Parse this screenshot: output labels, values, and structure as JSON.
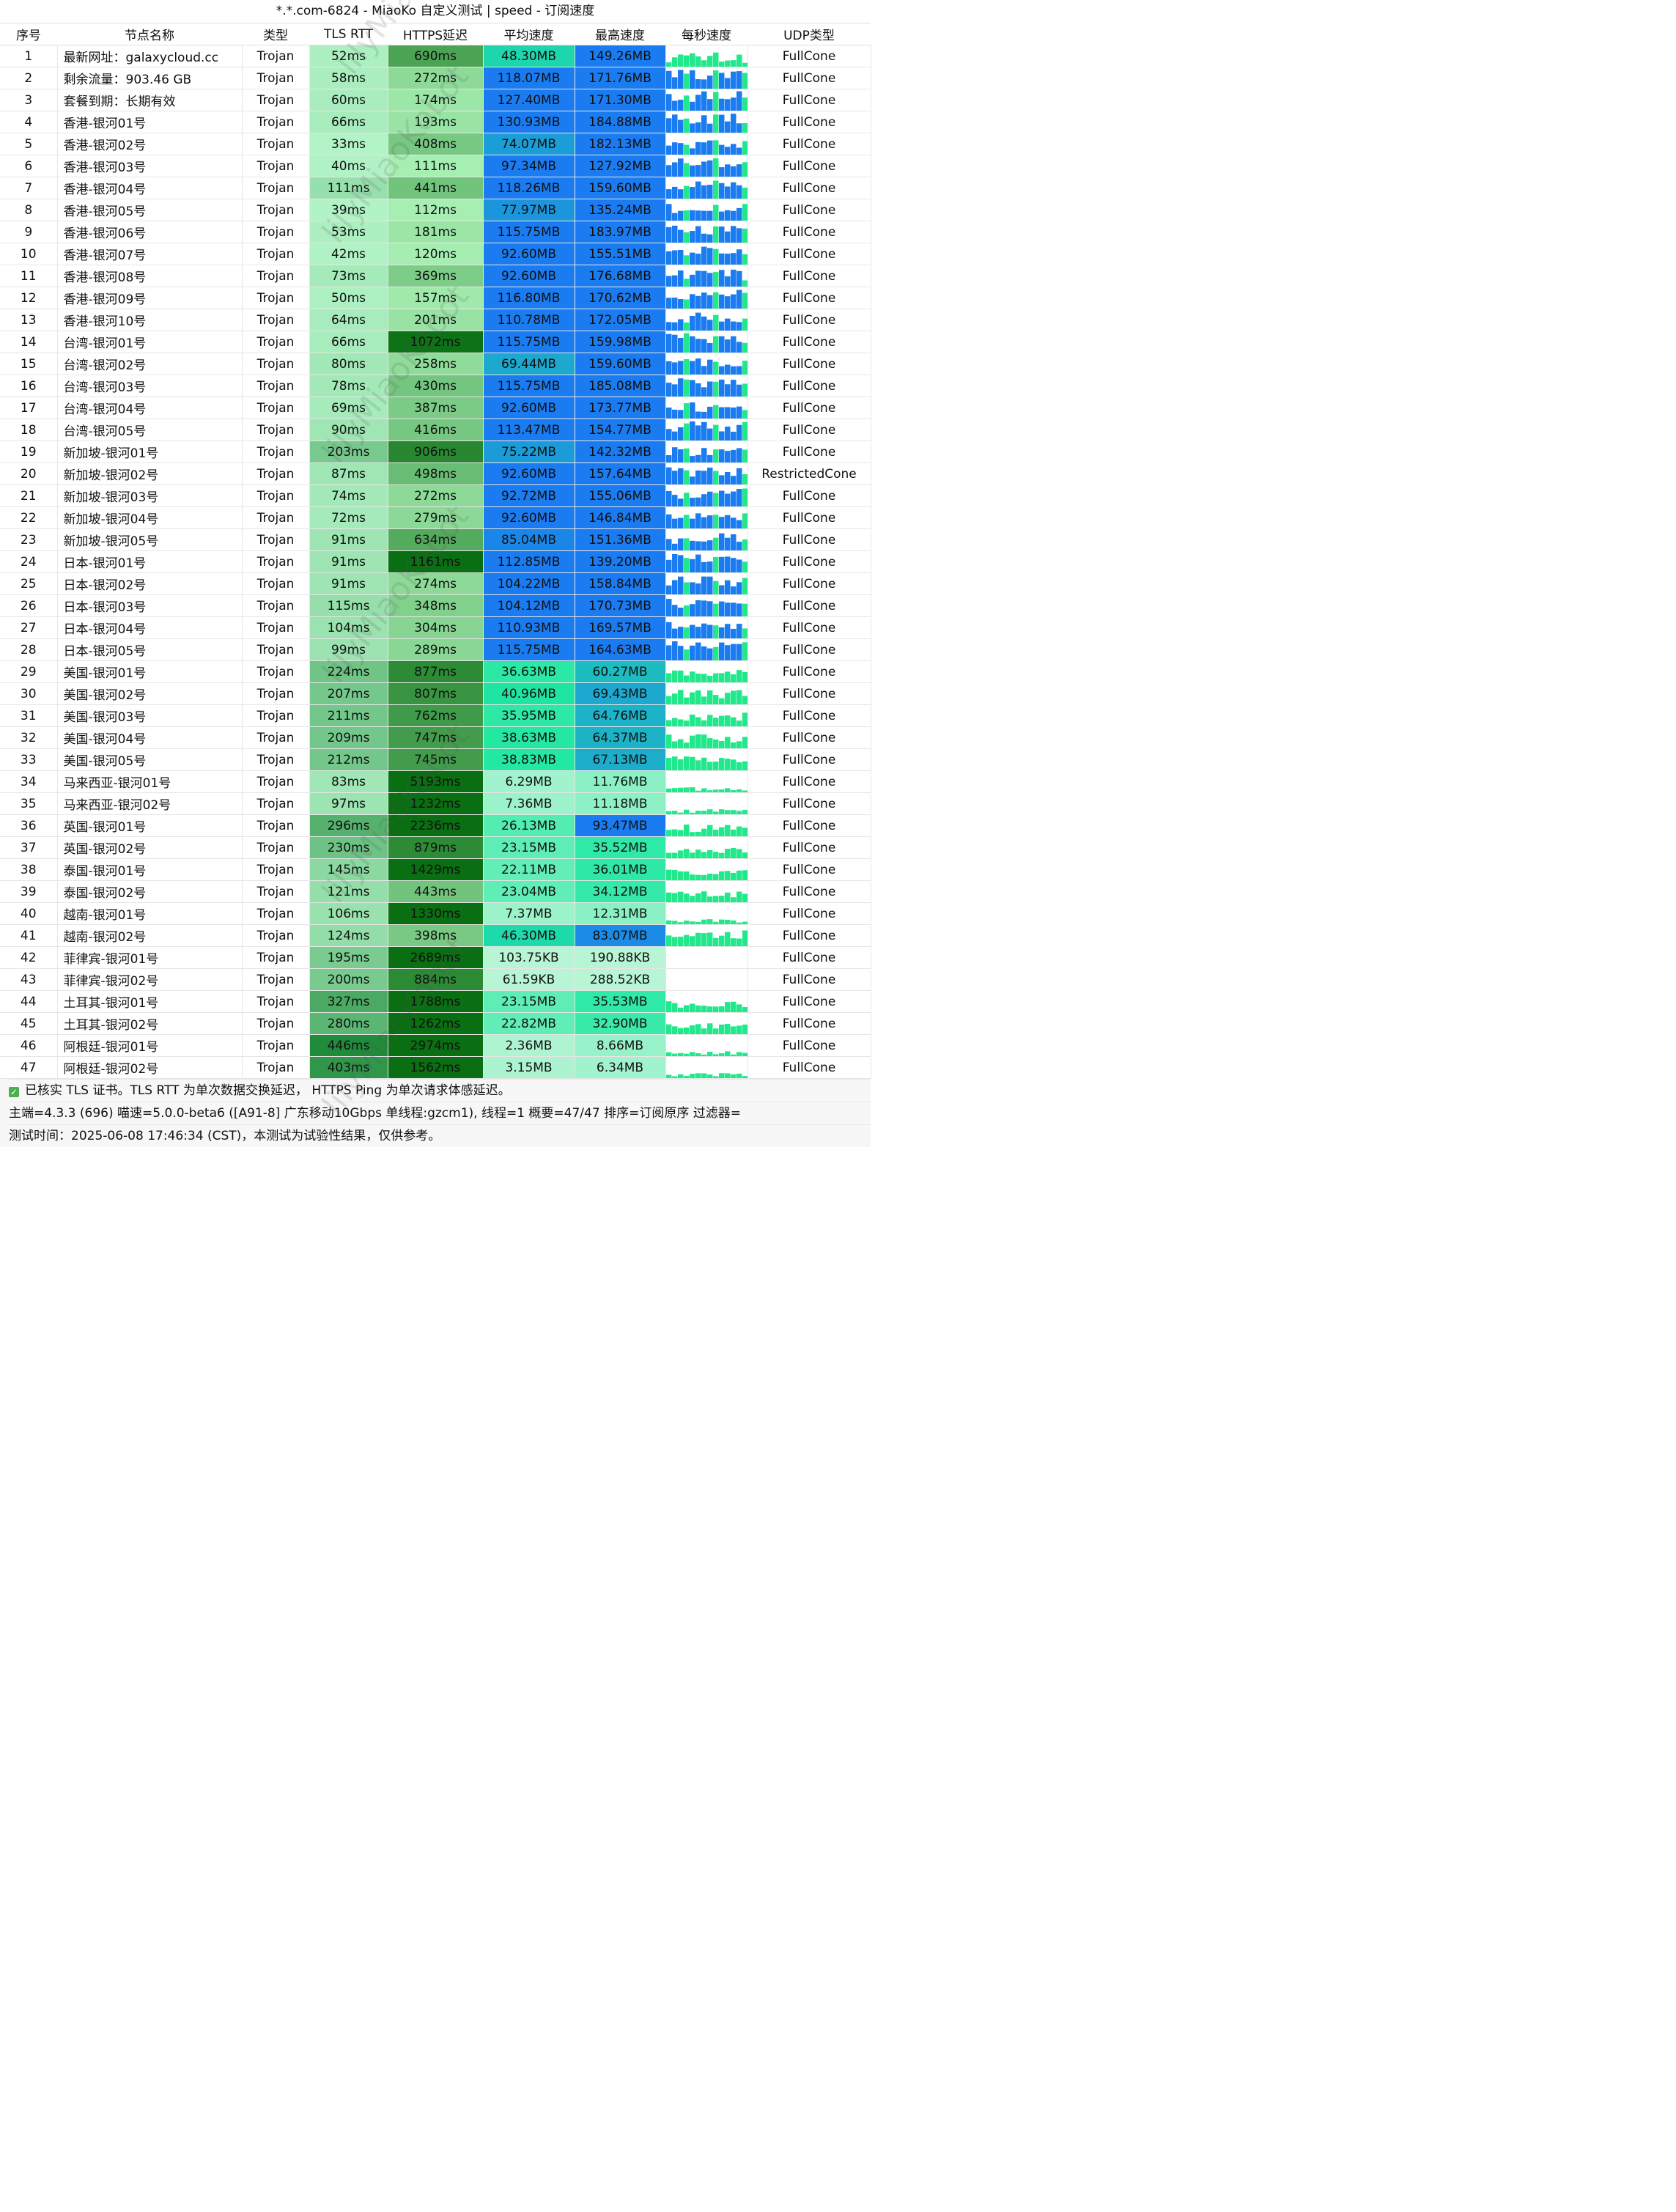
{
  "window": {
    "title": "*.*.com-6824 - MiaoKo 自定义测试 | speed - 订阅速度"
  },
  "table": {
    "headers": [
      "序号",
      "节点名称",
      "类型",
      "TLS RTT",
      "HTTPS延迟",
      "平均速度",
      "最高速度",
      "每秒速度",
      "UDP类型"
    ],
    "rows": [
      {
        "idx": "1",
        "name": "最新网址：galaxycloud.cc",
        "type": "Trojan",
        "tls": "52ms",
        "https": "690ms",
        "avg": "48.30MB",
        "max": "149.26MB",
        "udp": "FullCone"
      },
      {
        "idx": "2",
        "name": "剩余流量：903.46 GB",
        "type": "Trojan",
        "tls": "58ms",
        "https": "272ms",
        "avg": "118.07MB",
        "max": "171.76MB",
        "udp": "FullCone"
      },
      {
        "idx": "3",
        "name": "套餐到期：长期有效",
        "type": "Trojan",
        "tls": "60ms",
        "https": "174ms",
        "avg": "127.40MB",
        "max": "171.30MB",
        "udp": "FullCone"
      },
      {
        "idx": "4",
        "name": "香港-银河01号",
        "type": "Trojan",
        "tls": "66ms",
        "https": "193ms",
        "avg": "130.93MB",
        "max": "184.88MB",
        "udp": "FullCone"
      },
      {
        "idx": "5",
        "name": "香港-银河02号",
        "type": "Trojan",
        "tls": "33ms",
        "https": "408ms",
        "avg": "74.07MB",
        "max": "182.13MB",
        "udp": "FullCone"
      },
      {
        "idx": "6",
        "name": "香港-银河03号",
        "type": "Trojan",
        "tls": "40ms",
        "https": "111ms",
        "avg": "97.34MB",
        "max": "127.92MB",
        "udp": "FullCone"
      },
      {
        "idx": "7",
        "name": "香港-银河04号",
        "type": "Trojan",
        "tls": "111ms",
        "https": "441ms",
        "avg": "118.26MB",
        "max": "159.60MB",
        "udp": "FullCone"
      },
      {
        "idx": "8",
        "name": "香港-银河05号",
        "type": "Trojan",
        "tls": "39ms",
        "https": "112ms",
        "avg": "77.97MB",
        "max": "135.24MB",
        "udp": "FullCone"
      },
      {
        "idx": "9",
        "name": "香港-银河06号",
        "type": "Trojan",
        "tls": "53ms",
        "https": "181ms",
        "avg": "115.75MB",
        "max": "183.97MB",
        "udp": "FullCone"
      },
      {
        "idx": "10",
        "name": "香港-银河07号",
        "type": "Trojan",
        "tls": "42ms",
        "https": "120ms",
        "avg": "92.60MB",
        "max": "155.51MB",
        "udp": "FullCone"
      },
      {
        "idx": "11",
        "name": "香港-银河08号",
        "type": "Trojan",
        "tls": "73ms",
        "https": "369ms",
        "avg": "92.60MB",
        "max": "176.68MB",
        "udp": "FullCone"
      },
      {
        "idx": "12",
        "name": "香港-银河09号",
        "type": "Trojan",
        "tls": "50ms",
        "https": "157ms",
        "avg": "116.80MB",
        "max": "170.62MB",
        "udp": "FullCone"
      },
      {
        "idx": "13",
        "name": "香港-银河10号",
        "type": "Trojan",
        "tls": "64ms",
        "https": "201ms",
        "avg": "110.78MB",
        "max": "172.05MB",
        "udp": "FullCone"
      },
      {
        "idx": "14",
        "name": "台湾-银河01号",
        "type": "Trojan",
        "tls": "66ms",
        "https": "1072ms",
        "avg": "115.75MB",
        "max": "159.98MB",
        "udp": "FullCone"
      },
      {
        "idx": "15",
        "name": "台湾-银河02号",
        "type": "Trojan",
        "tls": "80ms",
        "https": "258ms",
        "avg": "69.44MB",
        "max": "159.60MB",
        "udp": "FullCone"
      },
      {
        "idx": "16",
        "name": "台湾-银河03号",
        "type": "Trojan",
        "tls": "78ms",
        "https": "430ms",
        "avg": "115.75MB",
        "max": "185.08MB",
        "udp": "FullCone"
      },
      {
        "idx": "17",
        "name": "台湾-银河04号",
        "type": "Trojan",
        "tls": "69ms",
        "https": "387ms",
        "avg": "92.60MB",
        "max": "173.77MB",
        "udp": "FullCone"
      },
      {
        "idx": "18",
        "name": "台湾-银河05号",
        "type": "Trojan",
        "tls": "90ms",
        "https": "416ms",
        "avg": "113.47MB",
        "max": "154.77MB",
        "udp": "FullCone"
      },
      {
        "idx": "19",
        "name": "新加坡-银河01号",
        "type": "Trojan",
        "tls": "203ms",
        "https": "906ms",
        "avg": "75.22MB",
        "max": "142.32MB",
        "udp": "FullCone"
      },
      {
        "idx": "20",
        "name": "新加坡-银河02号",
        "type": "Trojan",
        "tls": "87ms",
        "https": "498ms",
        "avg": "92.60MB",
        "max": "157.64MB",
        "udp": "RestrictedCone"
      },
      {
        "idx": "21",
        "name": "新加坡-银河03号",
        "type": "Trojan",
        "tls": "74ms",
        "https": "272ms",
        "avg": "92.72MB",
        "max": "155.06MB",
        "udp": "FullCone"
      },
      {
        "idx": "22",
        "name": "新加坡-银河04号",
        "type": "Trojan",
        "tls": "72ms",
        "https": "279ms",
        "avg": "92.60MB",
        "max": "146.84MB",
        "udp": "FullCone"
      },
      {
        "idx": "23",
        "name": "新加坡-银河05号",
        "type": "Trojan",
        "tls": "91ms",
        "https": "634ms",
        "avg": "85.04MB",
        "max": "151.36MB",
        "udp": "FullCone"
      },
      {
        "idx": "24",
        "name": "日本-银河01号",
        "type": "Trojan",
        "tls": "91ms",
        "https": "1161ms",
        "avg": "112.85MB",
        "max": "139.20MB",
        "udp": "FullCone"
      },
      {
        "idx": "25",
        "name": "日本-银河02号",
        "type": "Trojan",
        "tls": "91ms",
        "https": "274ms",
        "avg": "104.22MB",
        "max": "158.84MB",
        "udp": "FullCone"
      },
      {
        "idx": "26",
        "name": "日本-银河03号",
        "type": "Trojan",
        "tls": "115ms",
        "https": "348ms",
        "avg": "104.12MB",
        "max": "170.73MB",
        "udp": "FullCone"
      },
      {
        "idx": "27",
        "name": "日本-银河04号",
        "type": "Trojan",
        "tls": "104ms",
        "https": "304ms",
        "avg": "110.93MB",
        "max": "169.57MB",
        "udp": "FullCone"
      },
      {
        "idx": "28",
        "name": "日本-银河05号",
        "type": "Trojan",
        "tls": "99ms",
        "https": "289ms",
        "avg": "115.75MB",
        "max": "164.63MB",
        "udp": "FullCone"
      },
      {
        "idx": "29",
        "name": "美国-银河01号",
        "type": "Trojan",
        "tls": "224ms",
        "https": "877ms",
        "avg": "36.63MB",
        "max": "60.27MB",
        "udp": "FullCone"
      },
      {
        "idx": "30",
        "name": "美国-银河02号",
        "type": "Trojan",
        "tls": "207ms",
        "https": "807ms",
        "avg": "40.96MB",
        "max": "69.43MB",
        "udp": "FullCone"
      },
      {
        "idx": "31",
        "name": "美国-银河03号",
        "type": "Trojan",
        "tls": "211ms",
        "https": "762ms",
        "avg": "35.95MB",
        "max": "64.76MB",
        "udp": "FullCone"
      },
      {
        "idx": "32",
        "name": "美国-银河04号",
        "type": "Trojan",
        "tls": "209ms",
        "https": "747ms",
        "avg": "38.63MB",
        "max": "64.37MB",
        "udp": "FullCone"
      },
      {
        "idx": "33",
        "name": "美国-银河05号",
        "type": "Trojan",
        "tls": "212ms",
        "https": "745ms",
        "avg": "38.83MB",
        "max": "67.13MB",
        "udp": "FullCone"
      },
      {
        "idx": "34",
        "name": "马来西亚-银河01号",
        "type": "Trojan",
        "tls": "83ms",
        "https": "5193ms",
        "avg": "6.29MB",
        "max": "11.76MB",
        "udp": "FullCone"
      },
      {
        "idx": "35",
        "name": "马来西亚-银河02号",
        "type": "Trojan",
        "tls": "97ms",
        "https": "1232ms",
        "avg": "7.36MB",
        "max": "11.18MB",
        "udp": "FullCone"
      },
      {
        "idx": "36",
        "name": "英国-银河01号",
        "type": "Trojan",
        "tls": "296ms",
        "https": "2236ms",
        "avg": "26.13MB",
        "max": "93.47MB",
        "udp": "FullCone"
      },
      {
        "idx": "37",
        "name": "英国-银河02号",
        "type": "Trojan",
        "tls": "230ms",
        "https": "879ms",
        "avg": "23.15MB",
        "max": "35.52MB",
        "udp": "FullCone"
      },
      {
        "idx": "38",
        "name": "泰国-银河01号",
        "type": "Trojan",
        "tls": "145ms",
        "https": "1429ms",
        "avg": "22.11MB",
        "max": "36.01MB",
        "udp": "FullCone"
      },
      {
        "idx": "39",
        "name": "泰国-银河02号",
        "type": "Trojan",
        "tls": "121ms",
        "https": "443ms",
        "avg": "23.04MB",
        "max": "34.12MB",
        "udp": "FullCone"
      },
      {
        "idx": "40",
        "name": "越南-银河01号",
        "type": "Trojan",
        "tls": "106ms",
        "https": "1330ms",
        "avg": "7.37MB",
        "max": "12.31MB",
        "udp": "FullCone"
      },
      {
        "idx": "41",
        "name": "越南-银河02号",
        "type": "Trojan",
        "tls": "124ms",
        "https": "398ms",
        "avg": "46.30MB",
        "max": "83.07MB",
        "udp": "FullCone"
      },
      {
        "idx": "42",
        "name": "菲律宾-银河01号",
        "type": "Trojan",
        "tls": "195ms",
        "https": "2689ms",
        "avg": "103.75KB",
        "max": "190.88KB",
        "udp": "FullCone"
      },
      {
        "idx": "43",
        "name": "菲律宾-银河02号",
        "type": "Trojan",
        "tls": "200ms",
        "https": "884ms",
        "avg": "61.59KB",
        "max": "288.52KB",
        "udp": "FullCone"
      },
      {
        "idx": "44",
        "name": "土耳其-银河01号",
        "type": "Trojan",
        "tls": "327ms",
        "https": "1788ms",
        "avg": "23.15MB",
        "max": "35.53MB",
        "udp": "FullCone"
      },
      {
        "idx": "45",
        "name": "土耳其-银河02号",
        "type": "Trojan",
        "tls": "280ms",
        "https": "1262ms",
        "avg": "22.82MB",
        "max": "32.90MB",
        "udp": "FullCone"
      },
      {
        "idx": "46",
        "name": "阿根廷-银河01号",
        "type": "Trojan",
        "tls": "446ms",
        "https": "2974ms",
        "avg": "2.36MB",
        "max": "8.66MB",
        "udp": "FullCone"
      },
      {
        "idx": "47",
        "name": "阿根廷-银河02号",
        "type": "Trojan",
        "tls": "403ms",
        "https": "1562ms",
        "avg": "3.15MB",
        "max": "6.34MB",
        "udp": "FullCone"
      }
    ]
  },
  "footer": {
    "note": "已核实 TLS 证书。TLS RTT 为单次数据交换延迟， HTTPS Ping 为单次请求体感延迟。",
    "info": "主端=4.3.3 (696) 喵速=5.0.0-beta6 ([A91-8] 广东移动10Gbps 单线程:gzcm1), 线程=1 概要=47/47 排序=订阅原序 过滤器=",
    "time": "测试时间：2025-06-08 17:46:34 (CST)，本测试为试验性结果，仅供参考。"
  },
  "watermark": {
    "text": "lilyMiaoKobot"
  },
  "colors": {
    "tls_light": "#b4f5c8",
    "tls_dark": "#1f8a3a",
    "https_light": "#a8f0b4",
    "https_dark": "#0a6e12",
    "speed_slow": "#b8f5d4",
    "speed_mid": "#1ee8a0",
    "speed_fast": "#1a7cf0",
    "bar_blue": "#1a7cf0",
    "bar_green": "#22e88c",
    "check": "#4caf50"
  }
}
